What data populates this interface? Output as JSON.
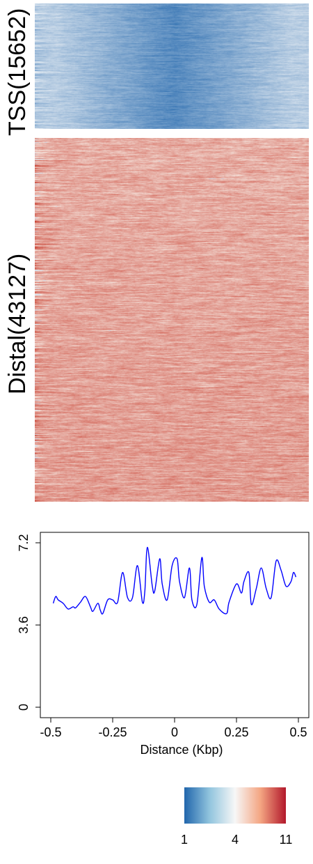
{
  "groups": [
    {
      "id": "tss",
      "label": "TSS(15652)",
      "palette": "blue"
    },
    {
      "id": "distal",
      "label": "Distal(43127)",
      "palette": "red"
    }
  ],
  "chart_data": {
    "type": "line",
    "title": "",
    "xlabel": "Distance (Kbp)",
    "ylabel": "",
    "xlim": [
      -0.5,
      0.5
    ],
    "ylim": [
      0,
      7.2
    ],
    "x_ticks": [
      -0.5,
      -0.25,
      0,
      0.25,
      0.5
    ],
    "x_tick_labels": [
      "-0.5",
      "-0.25",
      "0",
      "0.25",
      "0.5"
    ],
    "y_ticks": [
      0,
      3.6,
      7.2
    ],
    "y_tick_labels": [
      "0",
      "3.6",
      "7.2"
    ],
    "grid": false,
    "series": [
      {
        "color": "#0000ff",
        "x": [
          -0.49,
          -0.48,
          -0.47,
          -0.45,
          -0.43,
          -0.41,
          -0.4,
          -0.38,
          -0.36,
          -0.34,
          -0.33,
          -0.31,
          -0.3,
          -0.29,
          -0.27,
          -0.25,
          -0.23,
          -0.21,
          -0.19,
          -0.17,
          -0.15,
          -0.13,
          -0.12,
          -0.11,
          -0.09,
          -0.08,
          -0.06,
          -0.05,
          -0.03,
          -0.01,
          0.01,
          0.02,
          0.04,
          0.06,
          0.07,
          0.09,
          0.11,
          0.12,
          0.14,
          0.16,
          0.18,
          0.21,
          0.22,
          0.25,
          0.27,
          0.28,
          0.3,
          0.31,
          0.33,
          0.35,
          0.37,
          0.39,
          0.41,
          0.43,
          0.45,
          0.47,
          0.48,
          0.49
        ],
        "y": [
          4.55,
          4.85,
          4.7,
          4.55,
          4.3,
          4.4,
          4.35,
          4.6,
          4.85,
          4.4,
          4.2,
          4.55,
          4.25,
          4.1,
          4.7,
          4.7,
          4.6,
          5.9,
          4.8,
          4.8,
          6.2,
          4.6,
          5.1,
          7.0,
          5.3,
          5.1,
          6.5,
          5.4,
          4.7,
          6.2,
          6.5,
          5.5,
          4.8,
          6.1,
          4.7,
          4.5,
          6.55,
          5.3,
          4.6,
          4.7,
          4.3,
          4.1,
          4.6,
          5.4,
          5.0,
          5.5,
          5.9,
          4.5,
          5.2,
          6.1,
          5.2,
          4.8,
          6.4,
          6.0,
          5.3,
          5.5,
          5.9,
          5.7
        ]
      }
    ]
  },
  "colorbar": {
    "ticks": [
      "1",
      "4",
      "11"
    ],
    "colors": [
      "#2166ac",
      "#92c5de",
      "#f7f7f7",
      "#f4a582",
      "#b2182b"
    ]
  }
}
